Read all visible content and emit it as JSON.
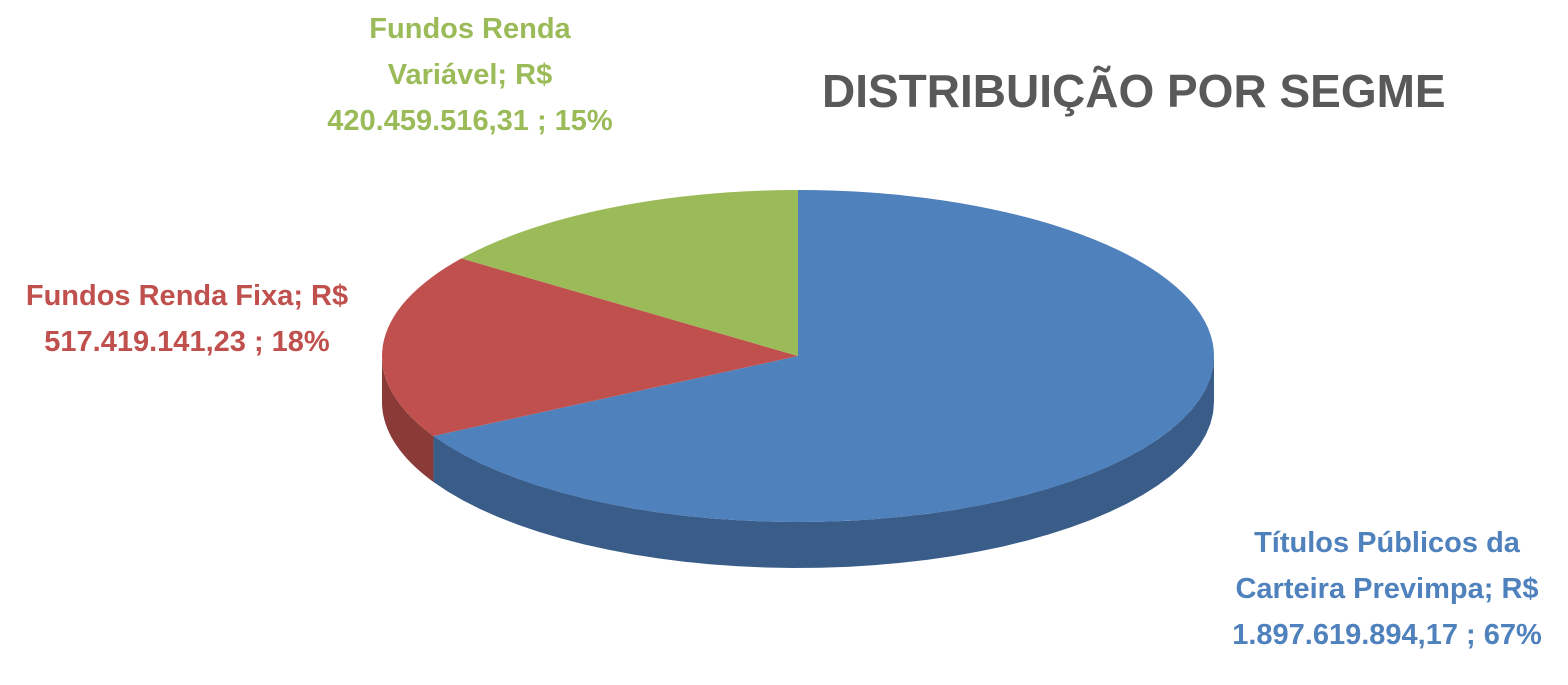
{
  "chart_data": {
    "type": "pie",
    "title": "DISTRIBUIÇÃO POR SEGME",
    "values": [
      67,
      18,
      15
    ],
    "value_labels": [
      "Títulos Públicos da Carteira Previmpa; R$ 1.897.619.894,17 ; 67%",
      "Fundos Renda Fixa; R$ 517.419.141,23 ; 18%",
      "Fundos Renda Variável; R$ 420.459.516,31 ; 15%"
    ],
    "colors": [
      "#4f81bd",
      "#c0504d",
      "#9bbb59"
    ]
  }
}
